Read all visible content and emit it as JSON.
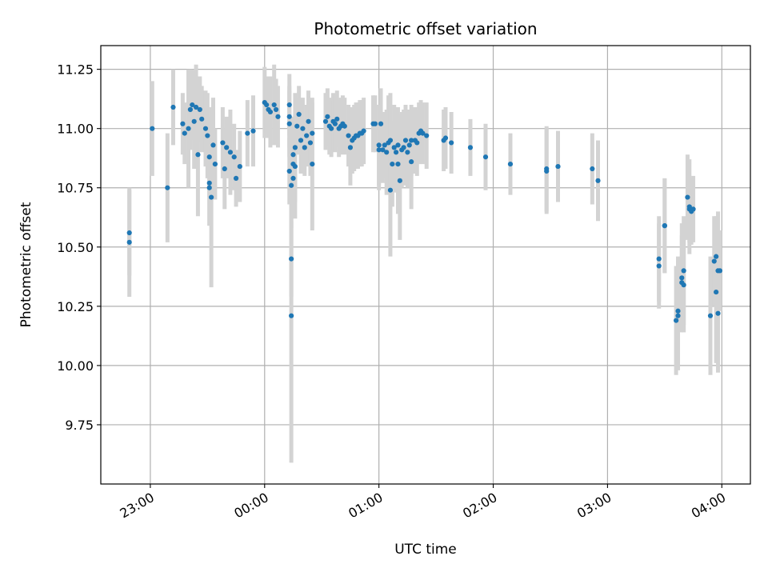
{
  "chart_data": {
    "type": "scatter",
    "title": "Photometric offset variation",
    "xlabel": "UTC time",
    "ylabel": "Photometric offset",
    "x_axis": {
      "format": "HH:MM",
      "start": "22:34",
      "end": "04:15",
      "ticks": [
        "23:00",
        "00:00",
        "01:00",
        "02:00",
        "03:00",
        "04:00"
      ]
    },
    "y_axis": {
      "ylim": [
        9.5,
        11.35
      ],
      "ticks": [
        "9.75",
        "10.00",
        "10.25",
        "10.50",
        "10.75",
        "11.00",
        "11.25"
      ]
    },
    "grid": true,
    "colors": {
      "point": "#1f77b4",
      "errorbar": "#d3d3d3",
      "grid": "#b0b0b0"
    },
    "series": [
      {
        "points": [
          [
            "22:49",
            10.56,
            0.18
          ],
          [
            "22:49",
            10.52,
            0.23
          ],
          [
            "23:01",
            11.0,
            0.2
          ],
          [
            "23:09",
            10.75,
            0.23
          ],
          [
            "23:12",
            11.09,
            0.16
          ],
          [
            "23:17",
            11.02,
            0.13
          ],
          [
            "23:18",
            10.98,
            0.13
          ],
          [
            "23:20",
            11.0,
            0.25
          ],
          [
            "23:21",
            11.08,
            0.17
          ],
          [
            "23:22",
            11.1,
            0.15
          ],
          [
            "23:23",
            11.03,
            0.2
          ],
          [
            "23:24",
            11.09,
            0.18
          ],
          [
            "23:25",
            10.89,
            0.26
          ],
          [
            "23:26",
            11.08,
            0.14
          ],
          [
            "23:27",
            11.04,
            0.14
          ],
          [
            "23:29",
            11.0,
            0.16
          ],
          [
            "23:30",
            10.97,
            0.18
          ],
          [
            "23:31",
            10.88,
            0.17
          ],
          [
            "23:31",
            10.77,
            0.18
          ],
          [
            "23:31",
            10.75,
            0.16
          ],
          [
            "23:32",
            10.71,
            0.38
          ],
          [
            "23:33",
            10.93,
            0.2
          ],
          [
            "23:34",
            10.85,
            0.15
          ],
          [
            "23:38",
            10.94,
            0.15
          ],
          [
            "23:39",
            10.83,
            0.17
          ],
          [
            "23:40",
            10.92,
            0.13
          ],
          [
            "23:42",
            10.9,
            0.18
          ],
          [
            "23:44",
            10.88,
            0.14
          ],
          [
            "23:45",
            10.79,
            0.12
          ],
          [
            "23:47",
            10.84,
            0.15
          ],
          [
            "23:51",
            10.98,
            0.14
          ],
          [
            "23:54",
            10.99,
            0.15
          ],
          [
            "00:00",
            11.11,
            0.15
          ],
          [
            "00:01",
            11.1,
            0.12
          ],
          [
            "00:02",
            11.08,
            0.12
          ],
          [
            "00:03",
            11.07,
            0.15
          ],
          [
            "00:05",
            11.1,
            0.17
          ],
          [
            "00:06",
            11.08,
            0.13
          ],
          [
            "00:07",
            11.05,
            0.13
          ],
          [
            "00:13",
            11.1,
            0.13
          ],
          [
            "00:13",
            11.05,
            0.13
          ],
          [
            "00:13",
            11.02,
            0.14
          ],
          [
            "00:13",
            10.82,
            0.14
          ],
          [
            "00:14",
            10.45,
            0.16
          ],
          [
            "00:14",
            10.21,
            0.62
          ],
          [
            "00:14",
            10.76,
            0.18
          ],
          [
            "00:15",
            10.79,
            0.16
          ],
          [
            "00:15",
            10.85,
            0.14
          ],
          [
            "00:15",
            10.89,
            0.16
          ],
          [
            "00:16",
            10.84,
            0.22
          ],
          [
            "00:16",
            10.92,
            0.23
          ],
          [
            "00:17",
            11.01,
            0.12
          ],
          [
            "00:18",
            11.06,
            0.12
          ],
          [
            "00:19",
            10.95,
            0.14
          ],
          [
            "00:20",
            11.0,
            0.13
          ],
          [
            "00:21",
            10.92,
            0.12
          ],
          [
            "00:22",
            10.97,
            0.13
          ],
          [
            "00:23",
            11.03,
            0.13
          ],
          [
            "00:24",
            10.94,
            0.14
          ],
          [
            "00:25",
            10.98,
            0.13
          ],
          [
            "00:25",
            10.85,
            0.28
          ],
          [
            "00:32",
            11.03,
            0.12
          ],
          [
            "00:33",
            11.05,
            0.12
          ],
          [
            "00:34",
            11.01,
            0.12
          ],
          [
            "00:35",
            11.0,
            0.12
          ],
          [
            "00:36",
            11.03,
            0.12
          ],
          [
            "00:37",
            11.02,
            0.12
          ],
          [
            "00:38",
            11.04,
            0.12
          ],
          [
            "00:39",
            11.0,
            0.12
          ],
          [
            "00:40",
            11.01,
            0.12
          ],
          [
            "00:41",
            11.02,
            0.12
          ],
          [
            "00:42",
            11.01,
            0.12
          ],
          [
            "00:44",
            10.97,
            0.13
          ],
          [
            "00:45",
            10.92,
            0.16
          ],
          [
            "00:46",
            10.95,
            0.14
          ],
          [
            "00:47",
            10.96,
            0.14
          ],
          [
            "00:48",
            10.97,
            0.14
          ],
          [
            "00:49",
            10.97,
            0.14
          ],
          [
            "00:50",
            10.98,
            0.14
          ],
          [
            "00:51",
            10.98,
            0.14
          ],
          [
            "00:52",
            10.99,
            0.14
          ],
          [
            "00:57",
            11.02,
            0.12
          ],
          [
            "00:58",
            11.02,
            0.12
          ],
          [
            "01:00",
            10.93,
            0.17
          ],
          [
            "01:00",
            10.91,
            0.17
          ],
          [
            "01:01",
            11.02,
            0.15
          ],
          [
            "01:02",
            10.91,
            0.14
          ],
          [
            "01:03",
            10.93,
            0.14
          ],
          [
            "01:04",
            10.9,
            0.18
          ],
          [
            "01:05",
            10.94,
            0.2
          ],
          [
            "01:06",
            10.95,
            0.2
          ],
          [
            "01:06",
            10.74,
            0.28
          ],
          [
            "01:07",
            10.85,
            0.18
          ],
          [
            "01:08",
            10.92,
            0.18
          ],
          [
            "01:09",
            10.9,
            0.17
          ],
          [
            "01:10",
            10.93,
            0.16
          ],
          [
            "01:10",
            10.85,
            0.21
          ],
          [
            "01:11",
            10.78,
            0.25
          ],
          [
            "01:12",
            10.91,
            0.16
          ],
          [
            "01:13",
            10.92,
            0.16
          ],
          [
            "01:14",
            10.95,
            0.15
          ],
          [
            "01:15",
            10.9,
            0.15
          ],
          [
            "01:16",
            10.93,
            0.15
          ],
          [
            "01:17",
            10.86,
            0.2
          ],
          [
            "01:17",
            10.95,
            0.15
          ],
          [
            "01:19",
            10.95,
            0.14
          ],
          [
            "01:20",
            10.94,
            0.14
          ],
          [
            "01:21",
            10.98,
            0.13
          ],
          [
            "01:22",
            10.99,
            0.13
          ],
          [
            "01:23",
            10.98,
            0.13
          ],
          [
            "01:25",
            10.97,
            0.14
          ],
          [
            "01:34",
            10.95,
            0.13
          ],
          [
            "01:35",
            10.96,
            0.13
          ],
          [
            "01:38",
            10.94,
            0.13
          ],
          [
            "01:48",
            10.92,
            0.12
          ],
          [
            "01:56",
            10.88,
            0.14
          ],
          [
            "02:09",
            10.85,
            0.13
          ],
          [
            "02:28",
            10.83,
            0.18
          ],
          [
            "02:28",
            10.82,
            0.18
          ],
          [
            "02:34",
            10.84,
            0.15
          ],
          [
            "02:52",
            10.83,
            0.15
          ],
          [
            "02:55",
            10.78,
            0.17
          ],
          [
            "03:27",
            10.45,
            0.18
          ],
          [
            "03:27",
            10.42,
            0.18
          ],
          [
            "03:30",
            10.59,
            0.2
          ],
          [
            "03:30",
            10.59,
            0.2
          ],
          [
            "03:36",
            10.19,
            0.23
          ],
          [
            "03:37",
            10.21,
            0.23
          ],
          [
            "03:37",
            10.23,
            0.23
          ],
          [
            "03:39",
            10.37,
            0.23
          ],
          [
            "03:39",
            10.35,
            0.2
          ],
          [
            "03:40",
            10.4,
            0.23
          ],
          [
            "03:40",
            10.34,
            0.2
          ],
          [
            "03:42",
            10.71,
            0.18
          ],
          [
            "03:43",
            10.67,
            0.2
          ],
          [
            "03:43",
            10.66,
            0.14
          ],
          [
            "03:44",
            10.65,
            0.14
          ],
          [
            "03:45",
            10.66,
            0.14
          ],
          [
            "03:54",
            10.21,
            0.25
          ],
          [
            "03:56",
            10.44,
            0.19
          ],
          [
            "03:57",
            10.46,
            0.17
          ],
          [
            "03:57",
            10.31,
            0.3
          ],
          [
            "03:58",
            10.22,
            0.25
          ],
          [
            "03:58",
            10.4,
            0.25
          ],
          [
            "03:59",
            10.4,
            0.17
          ]
        ]
      }
    ]
  }
}
